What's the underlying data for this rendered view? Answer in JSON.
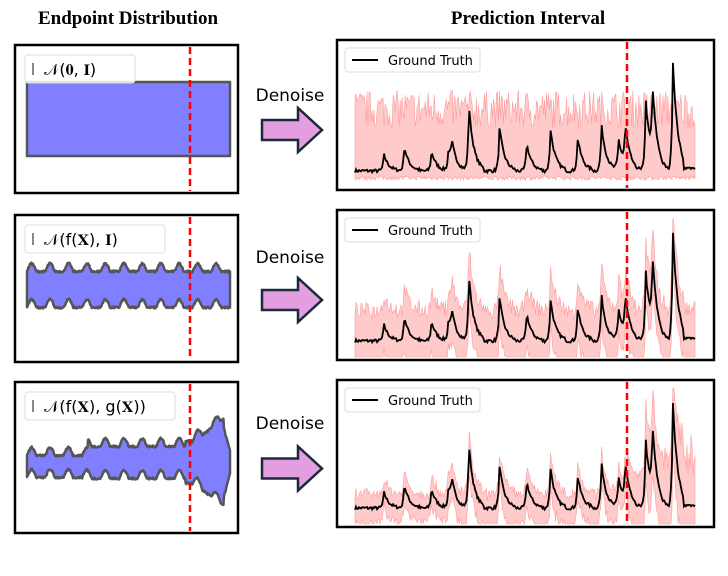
{
  "titles": {
    "left": "Endpoint Distribution",
    "right": "Prediction Interval"
  },
  "arrow_label": "Denoise",
  "colors": {
    "endpoint_fill": "#7f7fff",
    "interval_fill": "#ffb3b3",
    "ground_truth": "#000000",
    "split_line": "#ff0000",
    "arrow_fill": "#e39ee0"
  },
  "rows": [
    {
      "endpoint_legend": "𝒩(𝟎, 𝐈)",
      "interval_legend": "Ground Truth"
    },
    {
      "endpoint_legend": "𝒩(f(𝐗), 𝐈)",
      "interval_legend": "Ground Truth"
    },
    {
      "endpoint_legend": "𝒩(f(𝐗), g(𝐗))",
      "interval_legend": "Ground Truth"
    }
  ]
}
